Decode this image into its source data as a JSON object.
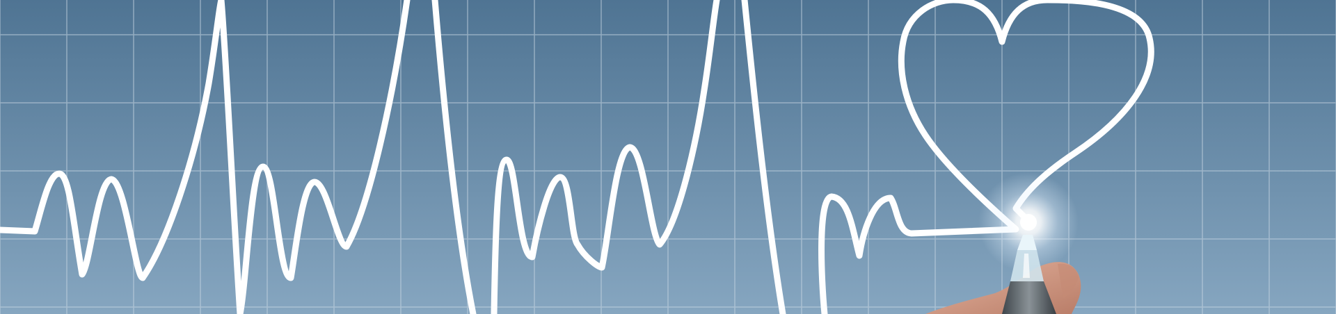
{
  "banner": {
    "image": "heartbeat-line-drawn-into-heart-by-hand-with-glowing-pen",
    "colors": {
      "background_top": "#4f7493",
      "background_bottom": "#86a6c0",
      "grid": "#c9d7e3",
      "line": "#ffffff",
      "glow": "#ffffff",
      "skin": "#d9a48e",
      "pen": "#5d6469"
    },
    "icons": [
      "heart-icon",
      "pen-icon",
      "hand-icon"
    ]
  }
}
